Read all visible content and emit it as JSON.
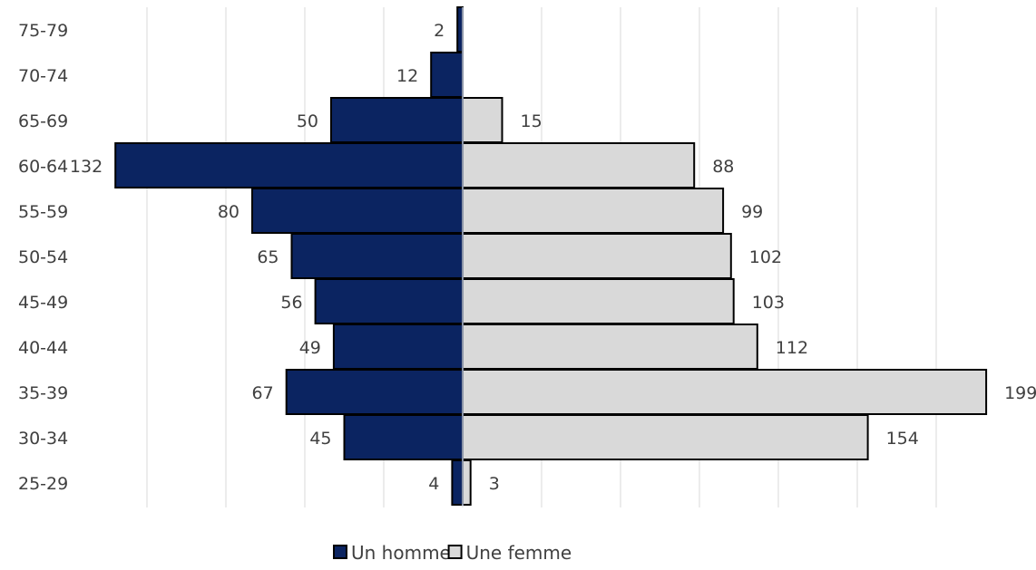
{
  "chart_data": {
    "type": "bar",
    "orientation": "horizontal",
    "subtype": "population-pyramid",
    "categories": [
      "75-79",
      "70-74",
      "65-69",
      "60-64",
      "55-59",
      "50-54",
      "45-49",
      "40-44",
      "35-39",
      "30-34",
      "25-29"
    ],
    "series": [
      {
        "name": "Un homme",
        "values": [
          2,
          12,
          50,
          132,
          80,
          65,
          56,
          49,
          67,
          45,
          4
        ],
        "color": "#0b2461",
        "direction": "left"
      },
      {
        "name": "Une femme",
        "values": [
          0,
          0,
          15,
          88,
          99,
          102,
          103,
          112,
          199,
          154,
          3
        ],
        "color": "#d9d9d9",
        "direction": "right"
      }
    ],
    "xlim": [
      -140,
      200
    ],
    "grid": "vertical",
    "legend": "bottom-center",
    "title": "",
    "xlabel": "",
    "ylabel": ""
  }
}
